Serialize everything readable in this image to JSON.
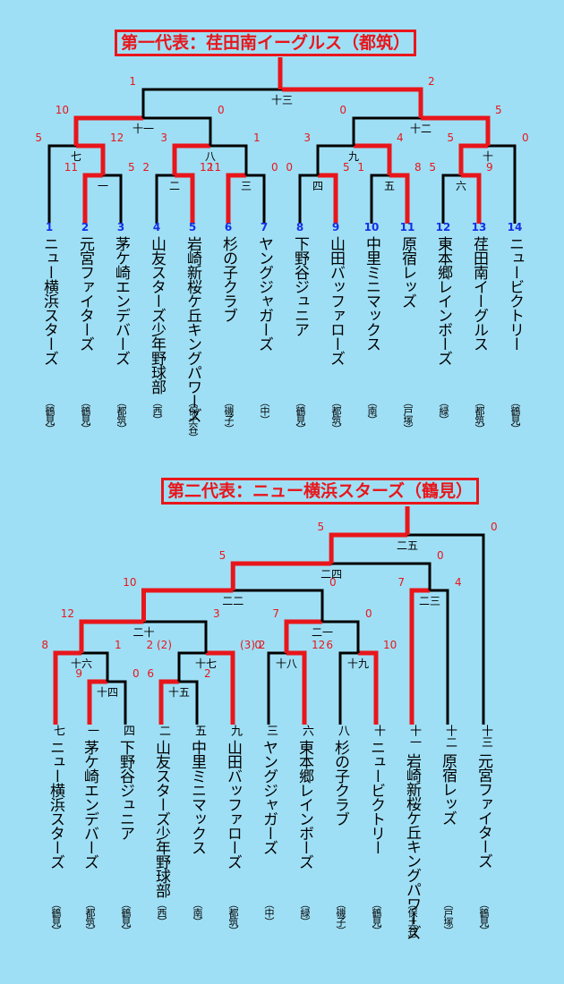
{
  "titles": {
    "first": "第一代表：荏田南イーグルス（都筑）",
    "second": "第二代表：ニュー横浜スターズ（鶴見）"
  },
  "colors": {
    "background": "#9fdff5",
    "winner_line": "#e8161b",
    "loser_line": "#000000",
    "seed_number": "#1530e6"
  },
  "bracket1": {
    "teams": [
      {
        "seed": "1",
        "name": "ニュー横浜スターズ",
        "aff": "（鶴見）"
      },
      {
        "seed": "2",
        "name": "元宮ファイターズ",
        "aff": "（鶴見）"
      },
      {
        "seed": "3",
        "name": "茅ケ崎エンデバーズ",
        "aff": "（都筑）"
      },
      {
        "seed": "4",
        "name": "山友スターズ少年野球部",
        "aff": "（西）"
      },
      {
        "seed": "5",
        "name": "岩崎新桜ケ丘キングパワーズ",
        "aff": "（保土谷）"
      },
      {
        "seed": "6",
        "name": "杉の子クラブ",
        "aff": "（磯子）"
      },
      {
        "seed": "7",
        "name": "ヤングジャガーズ",
        "aff": "（中）"
      },
      {
        "seed": "8",
        "name": "下野谷ジュニア",
        "aff": "（鶴見）"
      },
      {
        "seed": "9",
        "name": "山田バッファローズ",
        "aff": "（都筑）"
      },
      {
        "seed": "10",
        "name": "中里ミニマックス",
        "aff": "（南）"
      },
      {
        "seed": "11",
        "name": "原宿レッズ",
        "aff": "（戸塚）"
      },
      {
        "seed": "12",
        "name": "東本郷レインボーズ",
        "aff": "（緑）"
      },
      {
        "seed": "13",
        "name": "荏田南イーグルス",
        "aff": "（都筑）"
      },
      {
        "seed": "14",
        "name": "ニュービクトリー",
        "aff": "（鶴見）"
      }
    ],
    "games": {
      "g1": "一",
      "g2": "二",
      "g3": "三",
      "g4": "四",
      "g5": "五",
      "g6": "六",
      "g7": "七",
      "g8": "八",
      "g9": "九",
      "g10": "十",
      "g11": "十一",
      "g12": "十二",
      "g13": "十三"
    },
    "scores": {
      "g1": [
        "11",
        "5"
      ],
      "g2": [
        "2",
        "12"
      ],
      "g3": [
        "11",
        "0"
      ],
      "g4": [
        "0",
        "5"
      ],
      "g5": [
        "1",
        "8"
      ],
      "g6": [
        "5",
        "9"
      ],
      "g7": [
        "5",
        "12"
      ],
      "g8": [
        "3",
        "1"
      ],
      "g9": [
        "3",
        "4"
      ],
      "g10": [
        "5",
        "0"
      ],
      "g11": [
        "10",
        "0"
      ],
      "g12": [
        "0",
        "5"
      ],
      "g13": [
        "1",
        "2"
      ]
    }
  },
  "bracket2": {
    "teams": [
      {
        "slot": "七",
        "name": "ニュー横浜スターズ",
        "aff": "（鶴見）"
      },
      {
        "slot": "一",
        "name": "茅ケ崎エンデバーズ",
        "aff": "（都筑）"
      },
      {
        "slot": "四",
        "name": "下野谷ジュニア",
        "aff": "（鶴見）"
      },
      {
        "slot": "二",
        "name": "山友スターズ少年野球部",
        "aff": "（西）"
      },
      {
        "slot": "五",
        "name": "中里ミニマックス",
        "aff": "（南）"
      },
      {
        "slot": "九",
        "name": "山田バッファローズ",
        "aff": "（都筑）"
      },
      {
        "slot": "三",
        "name": "ヤングジャガーズ",
        "aff": "（中）"
      },
      {
        "slot": "六",
        "name": "東本郷レインボーズ",
        "aff": "（緑）"
      },
      {
        "slot": "八",
        "name": "杉の子クラブ",
        "aff": "（磯子）"
      },
      {
        "slot": "十",
        "name": "ニュービクトリー",
        "aff": "（鶴見）"
      },
      {
        "slot": "十一",
        "name": "岩崎新桜ケ丘キングパワーズ",
        "aff": "（保土谷）"
      },
      {
        "slot": "十二",
        "name": "原宿レッズ",
        "aff": "（戸塚）"
      },
      {
        "slot": "十三",
        "name": "元宮ファイターズ",
        "aff": "（鶴見）"
      }
    ],
    "games": {
      "g14": "十四",
      "g15": "十五",
      "g16": "十六",
      "g17": "十七",
      "g18": "十八",
      "g19": "十九",
      "g20": "二十",
      "g21": "二一",
      "g22": "二二",
      "g23": "二三",
      "g24": "二四",
      "g25": "二五"
    },
    "scores": {
      "g14": [
        "9",
        "0"
      ],
      "g15": [
        "6",
        "2"
      ],
      "g16": [
        "8",
        "1"
      ],
      "g17": [
        "2 (2)",
        "(3) 2"
      ],
      "g18": [
        "0",
        "12"
      ],
      "g19": [
        "6",
        "10"
      ],
      "g20": [
        "12",
        "3"
      ],
      "g21": [
        "7",
        "0"
      ],
      "g22": [
        "10",
        "0"
      ],
      "g23": [
        "7",
        "4"
      ],
      "g24": [
        "5",
        "0"
      ],
      "g25": [
        "5",
        "0"
      ]
    }
  }
}
